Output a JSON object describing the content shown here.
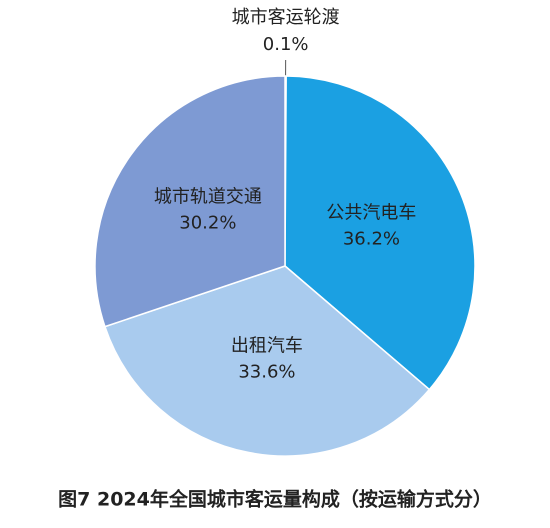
{
  "chart_data": {
    "type": "pie",
    "title": "图7  2024年全国城市客运量构成（按运输方式分）",
    "categories": [
      "城市客运轮渡",
      "公共汽电车",
      "出租汽车",
      "城市轨道交通"
    ],
    "values": [
      0.1,
      36.2,
      33.6,
      30.2
    ],
    "value_labels": [
      "0.1%",
      "36.2%",
      "33.6%",
      "30.2%"
    ],
    "colors": [
      "#dfe9f5",
      "#1ba0e2",
      "#a9cbee",
      "#7e9ad3"
    ]
  }
}
